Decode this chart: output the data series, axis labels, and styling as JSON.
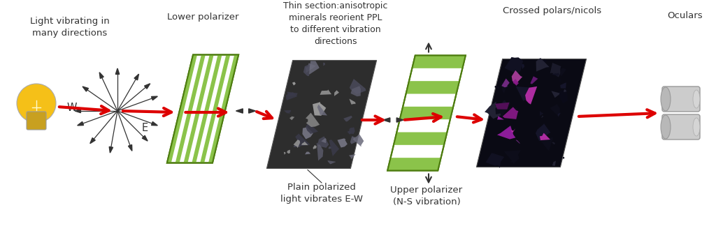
{
  "bg_color": "#ffffff",
  "text_color": "#111111",
  "red_color": "#dd0000",
  "dark_color": "#333333",
  "green_light": "#8bc34a",
  "green_dark": "#4d7c0f",
  "white_color": "#ffffff",
  "label_light": "Light vibrating in\nmany directions",
  "label_lower_pol": "Lower polarizer",
  "label_thin_section": "Thin section:anisotropic\nminerals reorient PPL\nto different vibration\ndirections",
  "label_upper_pol": "Upper polarizer\n(N-S vibration)",
  "label_crossed": "Crossed polars/nicols",
  "label_oculars": "Oculars",
  "label_ppl": "Plain polarized\nlight vibrates E-W",
  "label_W": "W",
  "label_E": "E",
  "fs": 9.5
}
